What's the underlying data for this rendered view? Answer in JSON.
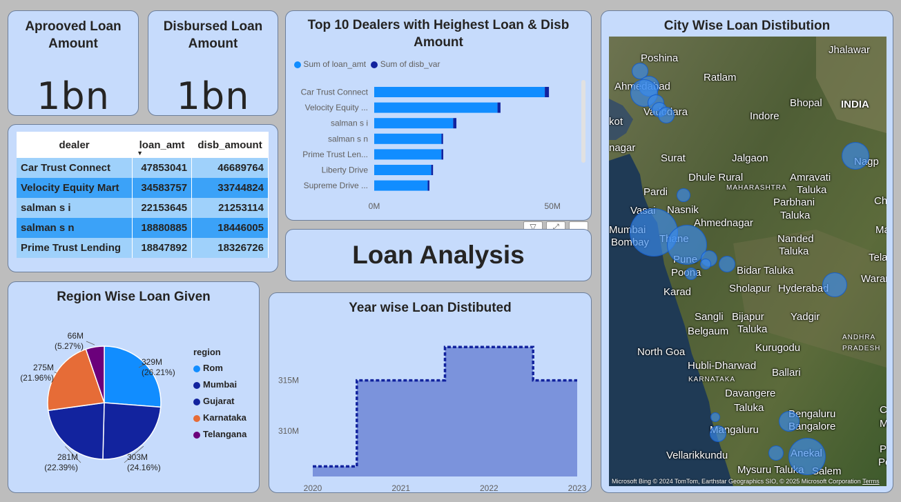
{
  "kpis": {
    "approved": {
      "title_line1": "Aprooved Loan",
      "title_line2": "Amount",
      "value": "1bn"
    },
    "disbursed": {
      "title_line1": "Disbursed Loan",
      "title_line2": "Amount",
      "value": "1bn"
    }
  },
  "dealer_table": {
    "headers": [
      "dealer",
      "loan_amt",
      "disb_amount"
    ],
    "rows": [
      [
        "Car Trust Connect",
        "47853041",
        "46689764"
      ],
      [
        "Velocity Equity Mart",
        "34583757",
        "33744824"
      ],
      [
        "salman s i",
        "22153645",
        "21253114"
      ],
      [
        "salman s n",
        "18880885",
        "18446005"
      ],
      [
        "Prime Trust Lending",
        "18847892",
        "18326726"
      ]
    ]
  },
  "top_dealers": {
    "title_line1": "Top 10 Dealers with Heighest Loan & Disb",
    "title_line2": "Amount",
    "legend": [
      "Sum of loan_amt",
      "Sum of disb_var"
    ],
    "colors": {
      "loan": "#118dff",
      "disb": "#12239e"
    }
  },
  "loan_analysis_title": "Loan Analysis",
  "region_pie": {
    "title": "Region Wise Loan Given",
    "legend_title": "region",
    "slices": [
      {
        "name": "Rom",
        "label_value": "329M",
        "label_pct": "(26.21%)",
        "color": "#118dff"
      },
      {
        "name": "Mumbai",
        "label_value": "303M",
        "label_pct": "(24.16%)",
        "color": "#12239e"
      },
      {
        "name": "Gujarat",
        "label_value": "281M",
        "label_pct": "(22.39%)",
        "color": "#12239e"
      },
      {
        "name": "Karnataka",
        "label_value": "275M",
        "label_pct": "(21.96%)",
        "color": "#e66c37"
      },
      {
        "name": "Telangana",
        "label_value": "66M",
        "label_pct": "(5.27%)",
        "color": "#6b007b"
      }
    ]
  },
  "year_chart": {
    "title": "Year wise Loan Distibuted"
  },
  "city_map": {
    "title": "City Wise Loan Distibution",
    "labels": [
      "Jhalawar",
      "Poshina",
      "Ahmedabad",
      "Ratlam",
      "Bhopal",
      "INDIA",
      "Vadodara",
      "Indore",
      "kot",
      "nagar",
      "Surat",
      "Jalgaon",
      "Nagp",
      "Dhule Rural",
      "Amravati",
      "Taluka",
      "Pardi",
      "MAHARASHTRA",
      "Parbhani",
      "Cha",
      "Vasai",
      "Nasnik",
      "Taluka",
      "Mumbai",
      "Ahmednagar",
      "Ma",
      "Bombay",
      "Thane",
      "Nanded",
      "Pune",
      "Taluka",
      "Telange",
      "Poona",
      "Bidar Taluka",
      "Warang",
      "Sholapur",
      "Hyderabad",
      "Karad",
      "Sangli",
      "Bijapur",
      "Yadgir",
      "Belgaum",
      "Taluka",
      "ANDHRA",
      "North Goa",
      "Kurugodu",
      "PRADESH",
      "Hubli-Dharwad",
      "Ballari",
      "KARNATAKA",
      "Davangere",
      "Taluka",
      "Che",
      "Bengaluru",
      "Ma",
      "Bangalore",
      "Mangaluru",
      "Puduche",
      "Vellarikkundu",
      "Anekal",
      "Pondiche",
      "Mysuru Taluka",
      "Salem"
    ],
    "footer": "© 2024 TomTom, Earthstar Geographics SIO, © 2025 Microsoft Corporation",
    "bing": "Microsoft Bing",
    "terms": "Terms"
  },
  "chart_data": [
    {
      "type": "bar",
      "title": "Top 10 Dealers with Heighest Loan & Disb Amount",
      "categories": [
        "Car Trust Connect",
        "Velocity Equity ...",
        "salman s i",
        "salman s n",
        "Prime Trust Len...",
        "Liberty Drive",
        "Supreme Drive ..."
      ],
      "series": [
        {
          "name": "Sum of loan_amt",
          "values": [
            47853041,
            34583757,
            22153645,
            18880885,
            18847892,
            16000000,
            15000000
          ]
        },
        {
          "name": "Sum of disb_var",
          "values": [
            1163277,
            838933,
            900531,
            434880,
            521166,
            500000,
            480000
          ]
        }
      ],
      "stacked": true,
      "orientation": "horizontal",
      "xlim": [
        0,
        55000000
      ],
      "xticks": [
        "0M",
        "50M"
      ],
      "legend": "top-left"
    },
    {
      "type": "pie",
      "title": "Region Wise Loan Given",
      "legend_title": "region",
      "categories": [
        "Rom",
        "Mumbai",
        "Gujarat",
        "Karnataka",
        "Telangana"
      ],
      "values": [
        329,
        303,
        281,
        275,
        66
      ],
      "percent_labels": [
        "26.21%",
        "24.16%",
        "22.39%",
        "21.96%",
        "5.27%"
      ],
      "value_labels": [
        "329M",
        "303M",
        "281M",
        "275M",
        "66M"
      ],
      "legend": "right"
    },
    {
      "type": "area",
      "title": "Year wise Loan Distibuted",
      "step": true,
      "x": [
        2020,
        2021,
        2022,
        2023
      ],
      "values": [
        306.5,
        315.0,
        318.3,
        315.0
      ],
      "unit": "M",
      "yticks": [
        "310M",
        "315M"
      ],
      "ylim": [
        305.5,
        320.5
      ],
      "xticks": [
        "2020",
        "2021",
        "2022",
        "2023"
      ],
      "colors": {
        "fill": "#7b93dc",
        "line": "#12239e"
      }
    }
  ]
}
